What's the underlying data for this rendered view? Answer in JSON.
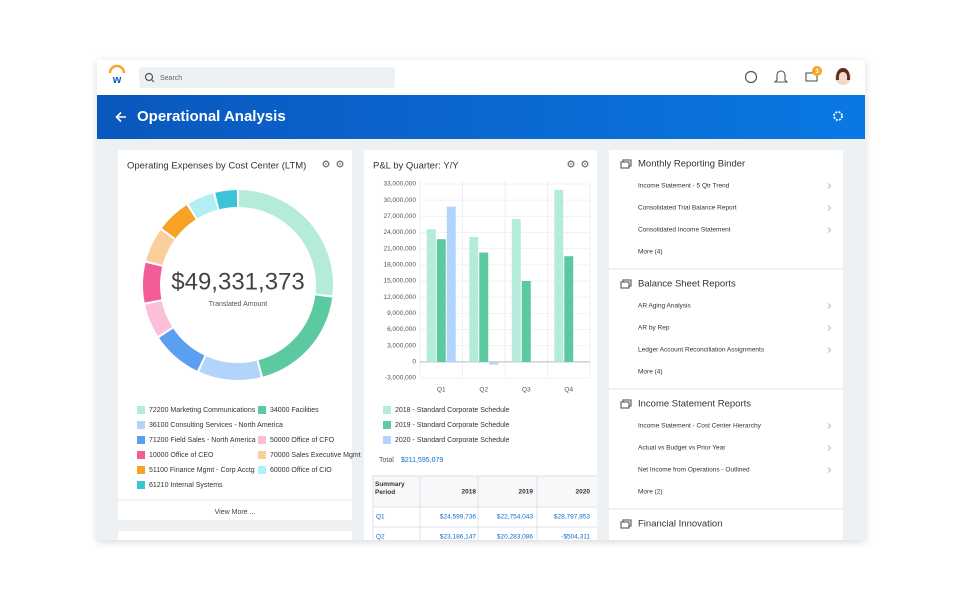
{
  "nav": {
    "search": "Search",
    "badge": "3"
  },
  "header": {
    "title": "Operational Analysis"
  },
  "expenses": {
    "type": "pie",
    "title": "Operating Expenses by Cost Center (LTM)",
    "total": "$49,331,373",
    "total_label": "Translated Amount",
    "series": [
      {
        "name": "72200 Marketing Communications",
        "color": "#b5ebda",
        "value": 13300000
      },
      {
        "name": "34000 Facilities",
        "color": "#5ccaa0",
        "value": 9400000
      },
      {
        "name": "36100 Consulting Services - North America",
        "color": "#b2d4fb",
        "value": 5400000
      },
      {
        "name": "71200 Field Sales - North America",
        "color": "#5b9ff0",
        "value": 4400000
      },
      {
        "name": "50000 Office of CFO",
        "color": "#fbbfd9",
        "value": 3000000
      },
      {
        "name": "10000 Office of CEO",
        "color": "#f25c97",
        "value": 3500000
      },
      {
        "name": "70000 Sales Executive Mgmt",
        "color": "#fbcf9c",
        "value": 3000000
      },
      {
        "name": "51100 Finance Mgmt - Corp Acctg",
        "color": "#f7a227",
        "value": 3000000
      },
      {
        "name": "60000 Office of CIO",
        "color": "#b3eef4",
        "value": 2400000
      },
      {
        "name": "61210 Internal Systems",
        "color": "#3cc4d9",
        "value": 2000000
      }
    ],
    "footer": "View More ..."
  },
  "pl": {
    "type": "bar",
    "title": "P&L by Quarter: Y/Y",
    "categories": [
      "Q1",
      "Q2",
      "Q3",
      "Q4"
    ],
    "series": [
      {
        "name": "2018 - Standard Corporate Schedule",
        "color": "#b5ebda",
        "values": [
          24599736,
          23186147,
          26500000,
          31900000
        ]
      },
      {
        "name": "2019 - Standard Corporate Schedule",
        "color": "#5ccaa0",
        "values": [
          22754043,
          20283086,
          15000000,
          19600000
        ]
      },
      {
        "name": "2020 - Standard Corporate Schedule",
        "color": "#b2d4fb",
        "values": [
          28797953,
          -504311,
          null,
          null
        ]
      }
    ],
    "ylim": [
      -3000000,
      33000000
    ],
    "yticks": [
      {
        "value": -3000000,
        "label": "-3,000,000"
      },
      0,
      {
        "value": 3000000,
        "label": "3,000,000"
      },
      {
        "value": 6000000,
        "label": "6,000,000"
      },
      {
        "value": 9000000,
        "label": "9,000,000"
      },
      {
        "value": 12000000,
        "label": "12,000,000"
      },
      {
        "value": 15000000,
        "label": "15,000,000"
      },
      {
        "value": 18000000,
        "label": "18,000,000"
      },
      {
        "value": 21000000,
        "label": "21,000,000"
      },
      {
        "value": 24000000,
        "label": "24,000,000"
      },
      {
        "value": 27000000,
        "label": "27,000,000"
      },
      {
        "value": 30000000,
        "label": "30,000,000"
      },
      {
        "value": 33000000,
        "label": "33,000,000"
      }
    ],
    "grid": true,
    "total_label": "Total",
    "total": "$211,595,079",
    "table": {
      "header": [
        "Summary Period",
        "2018",
        "2019",
        "2020"
      ],
      "rows": [
        [
          "Q1",
          "$24,599,736",
          "$22,754,043",
          "$28,797,953"
        ],
        [
          "Q2",
          "$23,186,147",
          "$20,283,086",
          "-$504,311"
        ]
      ]
    }
  },
  "reports": [
    {
      "title": "Monthly Reporting Binder",
      "items": [
        "Income Statement - 5 Qtr Trend",
        "Consolidated Trial Balance Report",
        "Consolidated Income Statement"
      ],
      "more": "More (4)"
    },
    {
      "title": "Balance Sheet Reports",
      "items": [
        "AR Aging Analysis",
        "AR by Rep",
        "Ledger Account Reconciliation Assignments"
      ],
      "more": "More (4)"
    },
    {
      "title": "Income Statement Reports",
      "items": [
        "Income Statement - Cost Center Hierarchy",
        "Actual vs Budget vs Prior Year",
        "Net Income from Operations - Outlined"
      ],
      "more": "More (2)"
    },
    {
      "title": "Financial Innovation"
    }
  ]
}
